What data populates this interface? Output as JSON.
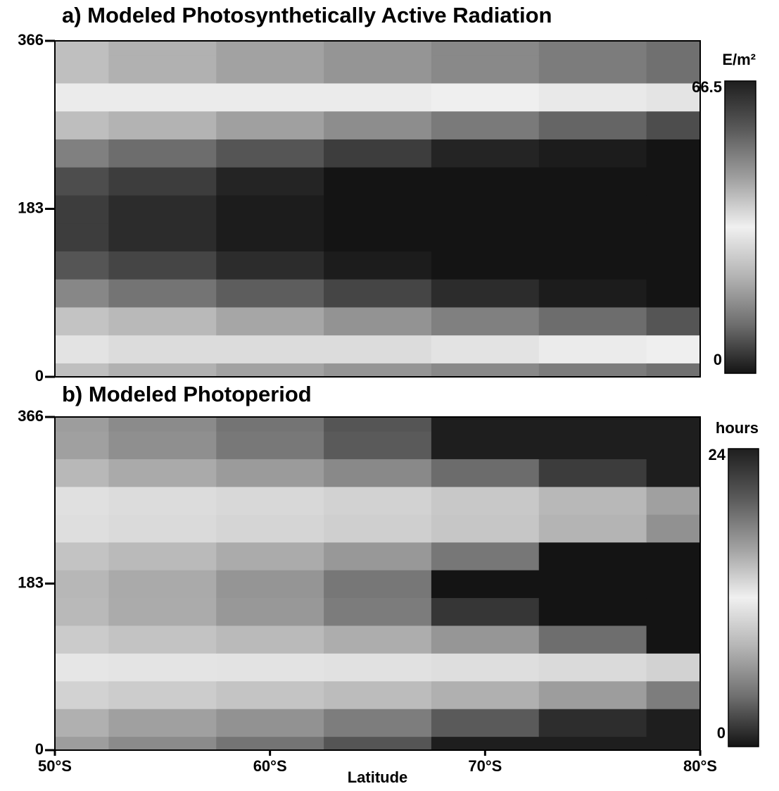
{
  "chart_data": [
    {
      "type": "heatmap",
      "title": "a) Modeled Photosynthetically Active Radiation",
      "x": [
        50,
        55,
        60,
        65,
        70,
        75,
        80
      ],
      "y": [
        0,
        30,
        61,
        91,
        122,
        152,
        183,
        213,
        244,
        274,
        305,
        335,
        366
      ],
      "values": [
        [
          40,
          42,
          44,
          46,
          48,
          50,
          52
        ],
        [
          35,
          36,
          36,
          36,
          35,
          34,
          33
        ],
        [
          25,
          23,
          20,
          17,
          14,
          11,
          8
        ],
        [
          15,
          12,
          9,
          6,
          3,
          1,
          0
        ],
        [
          8,
          6,
          3,
          1,
          0,
          0,
          0
        ],
        [
          5,
          3,
          1,
          0,
          0,
          0,
          0
        ],
        [
          5,
          3,
          1,
          0,
          0,
          0,
          0
        ],
        [
          7,
          5,
          2,
          0,
          0,
          0,
          0
        ],
        [
          14,
          11,
          8,
          5,
          2,
          1,
          0
        ],
        [
          24,
          22,
          19,
          16,
          13,
          10,
          7
        ],
        [
          34,
          34,
          34,
          34,
          33,
          32,
          31
        ],
        [
          40,
          42,
          44,
          46,
          48,
          50,
          52
        ],
        [
          40,
          42,
          44,
          46,
          48,
          50,
          52
        ]
      ],
      "xlim": [
        50,
        80
      ],
      "ylim": [
        0,
        366
      ],
      "yticks": [
        0,
        183,
        366
      ],
      "colormap": [
        "#141414",
        "#6e6e6e",
        "#b4b4b4",
        "#f0f0f0",
        "#a0a0a0",
        "#5a5a5a",
        "#1e1e1e"
      ],
      "colorbar": {
        "label": "E/m²",
        "lim": [
          0,
          66.5
        ],
        "ticks": [
          0,
          66.5
        ]
      }
    },
    {
      "type": "heatmap",
      "title": "b) Modeled Photoperiod",
      "x": [
        50,
        55,
        60,
        65,
        70,
        75,
        80
      ],
      "y": [
        0,
        30,
        61,
        91,
        122,
        152,
        183,
        213,
        244,
        274,
        305,
        335,
        366
      ],
      "values": [
        [
          16.2,
          17.2,
          18.5,
          20.3,
          24,
          24,
          24
        ],
        [
          15.2,
          16,
          16.8,
          18,
          20,
          23,
          24
        ],
        [
          13.5,
          13.8,
          14.2,
          14.6,
          15.2,
          16.2,
          18
        ],
        [
          11.3,
          11.2,
          11.1,
          11,
          10.8,
          10.5,
          10
        ],
        [
          9.5,
          9,
          8.4,
          7.6,
          6.3,
          4,
          0
        ],
        [
          8.3,
          7.5,
          6.4,
          4.8,
          1.5,
          0,
          0
        ],
        [
          8.2,
          7.4,
          6.2,
          4.5,
          0,
          0,
          0
        ],
        [
          9,
          8.4,
          7.5,
          6.4,
          4.5,
          0,
          0
        ],
        [
          10.8,
          10.5,
          10.2,
          9.8,
          9.2,
          8,
          6
        ],
        [
          12.8,
          13,
          13.2,
          13.5,
          14,
          14.8,
          16
        ],
        [
          14.8,
          15.5,
          16.3,
          17.3,
          19,
          22,
          24
        ],
        [
          16,
          17,
          18.3,
          20,
          24,
          24,
          24
        ],
        [
          16.2,
          17.2,
          18.5,
          20.3,
          24,
          24,
          24
        ]
      ],
      "xlim": [
        50,
        80
      ],
      "ylim": [
        0,
        366
      ],
      "yticks": [
        0,
        183,
        366
      ],
      "xticks": [
        {
          "value": 50,
          "label": "50°S"
        },
        {
          "value": 60,
          "label": "60°S"
        },
        {
          "value": 70,
          "label": "70°S"
        },
        {
          "value": 80,
          "label": "80°S"
        }
      ],
      "xlabel": "Latitude",
      "colormap": [
        "#141414",
        "#6e6e6e",
        "#b4b4b4",
        "#f0f0f0",
        "#a0a0a0",
        "#5a5a5a",
        "#1e1e1e"
      ],
      "colorbar": {
        "label": "hours",
        "lim": [
          0,
          24
        ],
        "ticks": [
          0,
          24
        ]
      }
    }
  ]
}
